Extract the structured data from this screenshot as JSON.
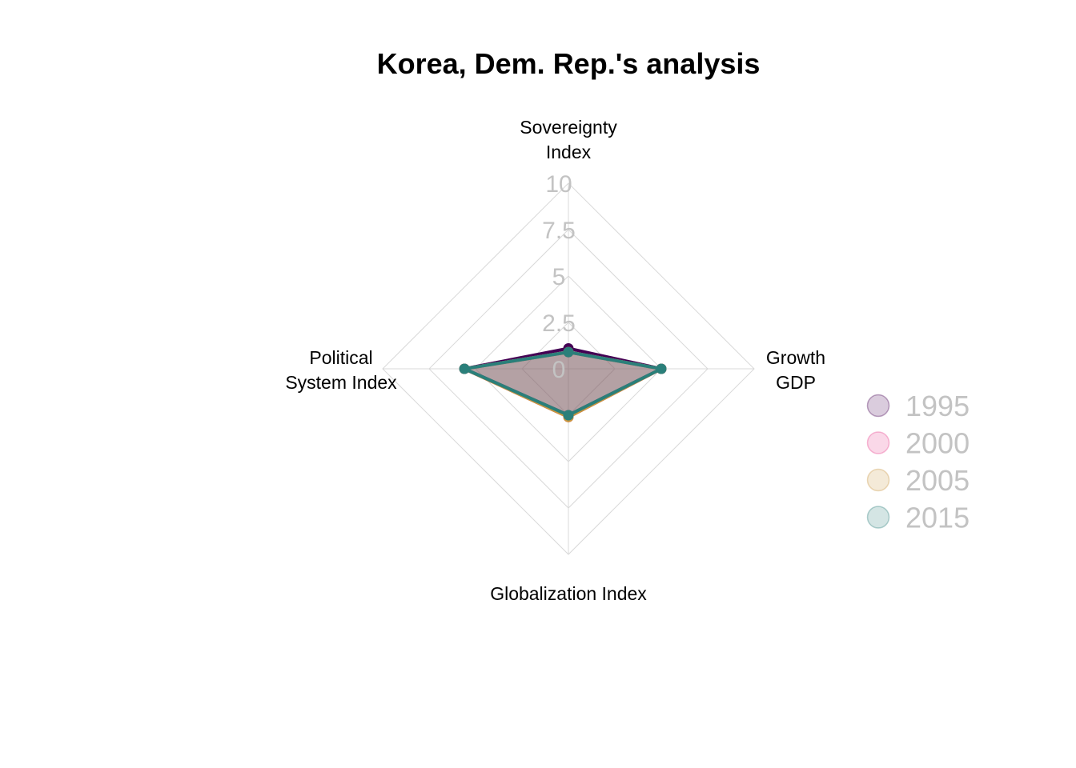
{
  "chart_data": {
    "type": "radar",
    "title": "Korea, Dem. Rep.'s analysis",
    "axes": [
      {
        "label_lines": [
          "Sovereignty",
          "Index"
        ]
      },
      {
        "label_lines": [
          "Growth",
          "GDP"
        ]
      },
      {
        "label_lines": [
          "Globalization Index"
        ]
      },
      {
        "label_lines": [
          "Political",
          "System Index"
        ]
      }
    ],
    "range": [
      0,
      10
    ],
    "ticks": [
      "0",
      "2.5",
      "5",
      "7.5",
      "10"
    ],
    "grid": true,
    "legend_position": "right",
    "series": [
      {
        "name": "1995",
        "color": "#440154",
        "values": [
          1.1,
          5.0,
          2.5,
          5.6
        ]
      },
      {
        "name": "2000",
        "color": "#e83e8c",
        "values": [
          0.9,
          5.0,
          2.6,
          5.6
        ]
      },
      {
        "name": "2005",
        "color": "#c8963e",
        "values": [
          0.9,
          5.0,
          2.6,
          5.6
        ]
      },
      {
        "name": "2015",
        "color": "#2a7f7a",
        "values": [
          0.9,
          5.0,
          2.5,
          5.6
        ]
      }
    ]
  }
}
